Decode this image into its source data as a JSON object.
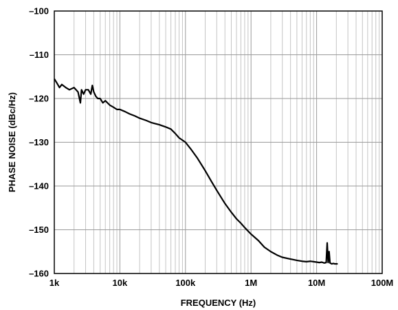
{
  "chart_data": {
    "type": "line",
    "title": "",
    "xlabel": "FREQUENCY (Hz)",
    "ylabel": "PHASE NOISE (dBc/Hz)",
    "x_scale": "log",
    "xlim": [
      1000,
      100000000
    ],
    "ylim": [
      -160,
      -100
    ],
    "x_ticks": [
      1000,
      10000,
      100000,
      1000000,
      10000000,
      100000000
    ],
    "x_tick_labels": [
      "1k",
      "10k",
      "100k",
      "1M",
      "10M",
      "100M"
    ],
    "y_ticks": [
      -100,
      -110,
      -120,
      -130,
      -140,
      -150,
      -160
    ],
    "y_tick_labels": [
      "–100",
      "–110",
      "–120",
      "–130",
      "–140",
      "–150",
      "–160"
    ],
    "grid": true,
    "line_color": "#000000",
    "series": [
      {
        "x": [
          1000,
          1100,
          1200,
          1300,
          1500,
          1700,
          2000,
          2300,
          2500,
          2600,
          2800,
          3000,
          3300,
          3600,
          3800,
          4000,
          4300,
          4600,
          5000,
          5500,
          6000,
          7000,
          8000,
          9000,
          10000,
          12000,
          14000,
          17000,
          20000,
          25000,
          30000,
          40000,
          50000,
          60000,
          70000,
          80000,
          100000,
          120000,
          150000,
          200000,
          250000,
          300000,
          400000,
          500000,
          600000,
          700000,
          800000,
          1000000,
          1300000,
          1600000,
          2000000,
          2500000,
          3000000,
          4000000,
          5000000,
          6000000,
          7000000,
          8000000,
          9000000,
          10000000,
          11000000,
          12000000,
          13000000,
          14000000,
          14500000,
          15000000,
          15500000,
          16000000,
          17000000,
          18000000,
          19000000,
          20000000,
          21000000
        ],
        "y": [
          -115.5,
          -116.5,
          -117.5,
          -116.8,
          -117.5,
          -118.0,
          -117.5,
          -118.5,
          -121.0,
          -118.0,
          -119.0,
          -118.0,
          -118.0,
          -119.0,
          -117.0,
          -118.5,
          -119.5,
          -120.0,
          -120.0,
          -121.0,
          -120.5,
          -121.5,
          -122.0,
          -122.5,
          -122.5,
          -123.0,
          -123.5,
          -124.0,
          -124.5,
          -125.0,
          -125.5,
          -126.0,
          -126.5,
          -127.0,
          -128.0,
          -129.0,
          -130.0,
          -131.5,
          -133.5,
          -136.5,
          -139.0,
          -141.0,
          -144.0,
          -146.0,
          -147.5,
          -148.5,
          -149.5,
          -151.0,
          -152.5,
          -154.0,
          -155.0,
          -155.8,
          -156.3,
          -156.7,
          -157.0,
          -157.2,
          -157.3,
          -157.2,
          -157.3,
          -157.4,
          -157.5,
          -157.4,
          -157.6,
          -157.5,
          -153.0,
          -157.5,
          -155.0,
          -157.6,
          -157.8,
          -157.7,
          -157.8,
          -157.8,
          -157.8
        ]
      }
    ]
  }
}
